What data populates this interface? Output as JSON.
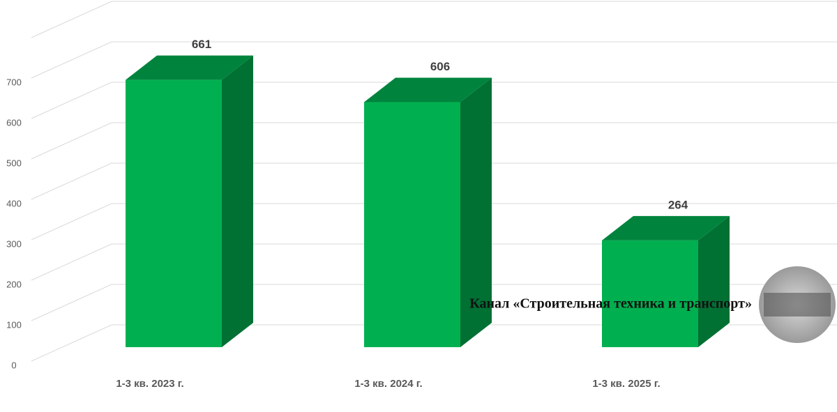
{
  "chart_data": {
    "type": "bar3d",
    "categories": [
      "1-3 кв. 2023 г.",
      "1-3 кв. 2024 г.",
      "1-3 кв. 2025 г."
    ],
    "values": [
      661,
      606,
      264
    ],
    "color": "#00b050",
    "top_color": "#00843d",
    "side_color": "#007033",
    "ylim": [
      0,
      800
    ],
    "yticks": [
      0,
      100,
      200,
      300,
      400,
      500,
      600,
      700
    ],
    "grid": true,
    "watermark": "Канал «Строительная техника и транспорт»"
  }
}
